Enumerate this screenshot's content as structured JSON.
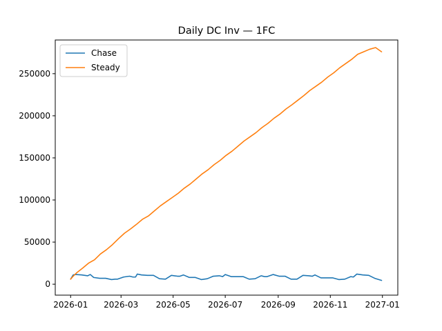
{
  "chart_data": {
    "type": "line",
    "title": "Daily DC Inv — 1FC",
    "xlabel": "",
    "ylabel": "",
    "x_type": "date",
    "xlim": [
      "2025-12-14",
      "2027-01-19"
    ],
    "ylim": [
      -13000,
      290000
    ],
    "x_ticks": [
      "2026-01-01",
      "2026-03-01",
      "2026-05-01",
      "2026-07-01",
      "2026-09-01",
      "2026-11-01",
      "2027-01-01"
    ],
    "x_tick_labels": [
      "2026-01",
      "2026-03",
      "2026-05",
      "2026-07",
      "2026-09",
      "2026-11",
      "2027-01"
    ],
    "y_ticks": [
      0,
      50000,
      100000,
      150000,
      200000,
      250000
    ],
    "y_tick_labels": [
      "0",
      "50000",
      "100000",
      "150000",
      "200000",
      "250000"
    ],
    "grid": false,
    "legend": "upper left",
    "series": [
      {
        "name": "Chase",
        "color": "#1f77b4",
        "x": [
          "2026-01-01",
          "2026-01-04",
          "2026-01-07",
          "2026-01-14",
          "2026-01-21",
          "2026-01-24",
          "2026-01-28",
          "2026-02-04",
          "2026-02-11",
          "2026-02-18",
          "2026-02-22",
          "2026-02-25",
          "2026-03-04",
          "2026-03-11",
          "2026-03-15",
          "2026-03-18",
          "2026-03-20",
          "2026-03-25",
          "2026-04-01",
          "2026-04-08",
          "2026-04-15",
          "2026-04-22",
          "2026-04-29",
          "2026-05-06",
          "2026-05-09",
          "2026-05-13",
          "2026-05-20",
          "2026-05-27",
          "2026-06-03",
          "2026-06-10",
          "2026-06-17",
          "2026-06-24",
          "2026-06-28",
          "2026-07-01",
          "2026-07-08",
          "2026-07-15",
          "2026-07-22",
          "2026-07-29",
          "2026-08-05",
          "2026-08-12",
          "2026-08-16",
          "2026-08-19",
          "2026-08-26",
          "2026-09-02",
          "2026-09-09",
          "2026-09-16",
          "2026-09-23",
          "2026-09-30",
          "2026-10-07",
          "2026-10-11",
          "2026-10-14",
          "2026-10-21",
          "2026-10-28",
          "2026-11-04",
          "2026-11-11",
          "2026-11-18",
          "2026-11-25",
          "2026-11-28",
          "2026-12-02",
          "2026-12-09",
          "2026-12-16",
          "2026-12-23",
          "2026-12-31"
        ],
        "values": [
          6000,
          11000,
          11500,
          11000,
          10000,
          11500,
          8000,
          7000,
          7000,
          5500,
          6000,
          6000,
          8500,
          9500,
          8500,
          8500,
          12000,
          11000,
          10500,
          10500,
          6500,
          6000,
          10500,
          9500,
          9500,
          11000,
          8000,
          8000,
          5500,
          6500,
          9500,
          10000,
          9000,
          11500,
          9000,
          9000,
          9000,
          6000,
          6500,
          10000,
          9000,
          9000,
          11500,
          9500,
          9500,
          6000,
          6000,
          10500,
          10000,
          9500,
          11000,
          7500,
          7500,
          7500,
          5500,
          6000,
          9000,
          8500,
          12000,
          11000,
          10500,
          7000,
          4500
        ]
      },
      {
        "name": "Steady",
        "color": "#ff7f0e",
        "x": [
          "2026-01-01",
          "2026-01-04",
          "2026-01-08",
          "2026-01-15",
          "2026-01-22",
          "2026-01-29",
          "2026-02-05",
          "2026-02-12",
          "2026-02-19",
          "2026-02-26",
          "2026-03-05",
          "2026-03-12",
          "2026-03-19",
          "2026-03-26",
          "2026-04-02",
          "2026-04-09",
          "2026-04-16",
          "2026-04-23",
          "2026-04-30",
          "2026-05-07",
          "2026-05-14",
          "2026-05-21",
          "2026-05-28",
          "2026-06-04",
          "2026-06-11",
          "2026-06-18",
          "2026-06-25",
          "2026-07-02",
          "2026-07-09",
          "2026-07-16",
          "2026-07-23",
          "2026-07-30",
          "2026-08-06",
          "2026-08-13",
          "2026-08-20",
          "2026-08-27",
          "2026-09-03",
          "2026-09-10",
          "2026-09-17",
          "2026-09-24",
          "2026-10-01",
          "2026-10-08",
          "2026-10-15",
          "2026-10-22",
          "2026-10-29",
          "2026-11-05",
          "2026-11-12",
          "2026-11-19",
          "2026-11-26",
          "2026-12-03",
          "2026-12-10",
          "2026-12-17",
          "2026-12-24",
          "2026-12-31"
        ],
        "values": [
          6000,
          9500,
          13500,
          19000,
          25000,
          29000,
          36000,
          41000,
          47000,
          54000,
          60500,
          65500,
          71000,
          77000,
          81000,
          87000,
          93000,
          98000,
          103000,
          108000,
          114000,
          119000,
          125000,
          131000,
          136000,
          142000,
          147000,
          153000,
          158000,
          164000,
          170000,
          175000,
          180000,
          186000,
          191000,
          197000,
          202000,
          208000,
          213000,
          218500,
          224000,
          230000,
          235000,
          240000,
          246000,
          251000,
          257000,
          262000,
          267000,
          273000,
          276000,
          279000,
          281000,
          276000
        ]
      }
    ]
  }
}
